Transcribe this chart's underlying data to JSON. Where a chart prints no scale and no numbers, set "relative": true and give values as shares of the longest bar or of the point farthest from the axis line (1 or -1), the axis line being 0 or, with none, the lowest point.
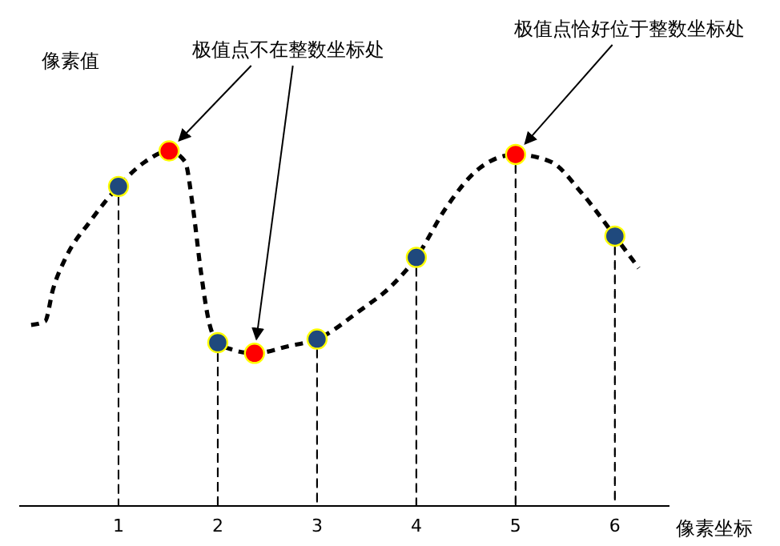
{
  "chart_data": {
    "type": "line",
    "relative": true,
    "xlabel": "像素坐标",
    "ylabel": "像素值",
    "xlim": [
      0,
      6.55
    ],
    "xticks": [
      1,
      2,
      3,
      4,
      5,
      6
    ],
    "grid": "x",
    "legend": false,
    "marker": "none",
    "line_style": "dashed",
    "annotations": [
      {
        "text": "极值点不在整数坐标处",
        "x": 2.37,
        "y": 0.43
      },
      {
        "text": "极值点恰好位于整数坐标处",
        "x": 5,
        "y": 0.99
      }
    ],
    "series": [
      {
        "color": "#000000",
        "x": [
          0.12,
          0.26,
          0.34,
          0.47,
          0.71,
          1,
          1.27,
          1.51,
          1.67,
          1.75,
          1.83,
          1.91,
          2,
          2.15,
          2.37,
          2.71,
          3,
          3.43,
          3.75,
          4,
          4.3,
          4.63,
          5,
          5.35,
          5.67,
          6,
          6.24
        ],
        "values": [
          0.51,
          0.52,
          0.61,
          0.7,
          0.8,
          0.9,
          0.97,
          1,
          0.97,
          0.84,
          0.66,
          0.52,
          0.46,
          0.44,
          0.43,
          0.45,
          0.47,
          0.55,
          0.62,
          0.7,
          0.84,
          0.95,
          0.99,
          0.97,
          0.88,
          0.76,
          0.67
        ]
      },
      {
        "type": "lollipop",
        "marker": "circle",
        "color": "#1f497d",
        "x": [
          1,
          2,
          3,
          4,
          6
        ],
        "values": [
          0.9,
          0.46,
          0.47,
          0.7,
          0.76
        ]
      },
      {
        "type": "lollipop",
        "marker": "circle",
        "color": "#ff0000",
        "x": [
          5
        ],
        "values": [
          0.99
        ]
      },
      {
        "type": "scatter",
        "marker": "circle",
        "color": "#ff0000",
        "x": [
          1.51,
          2.37
        ],
        "values": [
          1,
          0.43
        ]
      }
    ]
  }
}
